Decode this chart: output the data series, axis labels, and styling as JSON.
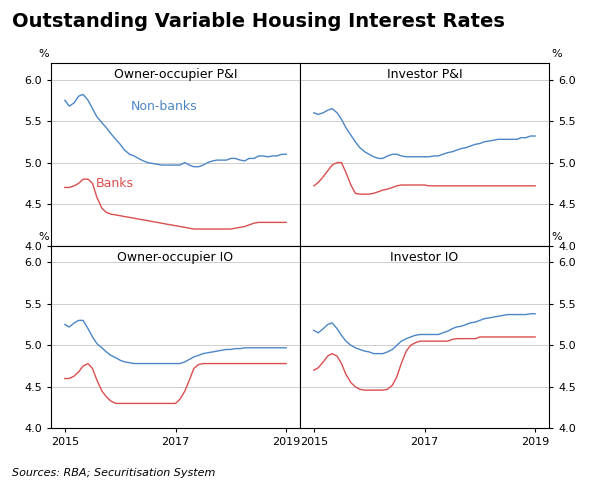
{
  "title": "Outstanding Variable Housing Interest Rates",
  "source_text": "Sources: RBA; Securitisation System",
  "subplots": [
    {
      "title": "Owner-occupier P&I",
      "row": 0,
      "col": 0,
      "nonbanks_x": [
        2015.0,
        2015.08,
        2015.17,
        2015.25,
        2015.33,
        2015.42,
        2015.5,
        2015.58,
        2015.67,
        2015.75,
        2015.83,
        2015.92,
        2016.0,
        2016.08,
        2016.17,
        2016.25,
        2016.33,
        2016.42,
        2016.5,
        2016.58,
        2016.67,
        2016.75,
        2016.83,
        2016.92,
        2017.0,
        2017.08,
        2017.17,
        2017.25,
        2017.33,
        2017.42,
        2017.5,
        2017.58,
        2017.67,
        2017.75,
        2017.83,
        2017.92,
        2018.0,
        2018.08,
        2018.17,
        2018.25,
        2018.33,
        2018.42,
        2018.5,
        2018.58,
        2018.67,
        2018.75,
        2018.83,
        2018.92,
        2019.0
      ],
      "nonbanks_y": [
        5.75,
        5.68,
        5.72,
        5.8,
        5.82,
        5.75,
        5.65,
        5.55,
        5.48,
        5.42,
        5.35,
        5.28,
        5.22,
        5.15,
        5.1,
        5.08,
        5.05,
        5.02,
        5.0,
        4.99,
        4.98,
        4.97,
        4.97,
        4.97,
        4.97,
        4.97,
        5.0,
        4.97,
        4.95,
        4.95,
        4.97,
        5.0,
        5.02,
        5.03,
        5.03,
        5.03,
        5.05,
        5.05,
        5.03,
        5.02,
        5.05,
        5.05,
        5.08,
        5.08,
        5.07,
        5.08,
        5.08,
        5.1,
        5.1
      ],
      "banks_x": [
        2015.0,
        2015.08,
        2015.17,
        2015.25,
        2015.33,
        2015.42,
        2015.5,
        2015.58,
        2015.67,
        2015.75,
        2015.83,
        2015.92,
        2016.0,
        2016.08,
        2016.17,
        2016.25,
        2016.33,
        2016.42,
        2016.5,
        2016.58,
        2016.67,
        2016.75,
        2016.83,
        2016.92,
        2017.0,
        2017.08,
        2017.17,
        2017.25,
        2017.33,
        2017.42,
        2017.5,
        2017.58,
        2017.67,
        2017.75,
        2017.83,
        2017.92,
        2018.0,
        2018.08,
        2018.17,
        2018.25,
        2018.33,
        2018.42,
        2018.5,
        2018.58,
        2018.67,
        2018.75,
        2018.83,
        2018.92,
        2019.0
      ],
      "banks_y": [
        4.7,
        4.7,
        4.72,
        4.75,
        4.8,
        4.8,
        4.75,
        4.58,
        4.45,
        4.4,
        4.38,
        4.37,
        4.36,
        4.35,
        4.34,
        4.33,
        4.32,
        4.31,
        4.3,
        4.29,
        4.28,
        4.27,
        4.26,
        4.25,
        4.24,
        4.23,
        4.22,
        4.21,
        4.2,
        4.2,
        4.2,
        4.2,
        4.2,
        4.2,
        4.2,
        4.2,
        4.2,
        4.21,
        4.22,
        4.23,
        4.25,
        4.27,
        4.28,
        4.28,
        4.28,
        4.28,
        4.28,
        4.28,
        4.28
      ],
      "has_labels": true
    },
    {
      "title": "Investor P&I",
      "row": 0,
      "col": 1,
      "nonbanks_x": [
        2015.0,
        2015.08,
        2015.17,
        2015.25,
        2015.33,
        2015.42,
        2015.5,
        2015.58,
        2015.67,
        2015.75,
        2015.83,
        2015.92,
        2016.0,
        2016.08,
        2016.17,
        2016.25,
        2016.33,
        2016.42,
        2016.5,
        2016.58,
        2016.67,
        2016.75,
        2016.83,
        2016.92,
        2017.0,
        2017.08,
        2017.17,
        2017.25,
        2017.33,
        2017.42,
        2017.5,
        2017.58,
        2017.67,
        2017.75,
        2017.83,
        2017.92,
        2018.0,
        2018.08,
        2018.17,
        2018.25,
        2018.33,
        2018.42,
        2018.5,
        2018.58,
        2018.67,
        2018.75,
        2018.83,
        2018.92,
        2019.0
      ],
      "nonbanks_y": [
        5.6,
        5.58,
        5.6,
        5.63,
        5.65,
        5.6,
        5.52,
        5.42,
        5.33,
        5.25,
        5.18,
        5.13,
        5.1,
        5.07,
        5.05,
        5.05,
        5.08,
        5.1,
        5.1,
        5.08,
        5.07,
        5.07,
        5.07,
        5.07,
        5.07,
        5.07,
        5.08,
        5.08,
        5.1,
        5.12,
        5.13,
        5.15,
        5.17,
        5.18,
        5.2,
        5.22,
        5.23,
        5.25,
        5.26,
        5.27,
        5.28,
        5.28,
        5.28,
        5.28,
        5.28,
        5.3,
        5.3,
        5.32,
        5.32
      ],
      "banks_x": [
        2015.0,
        2015.08,
        2015.17,
        2015.25,
        2015.33,
        2015.42,
        2015.5,
        2015.58,
        2015.67,
        2015.75,
        2015.83,
        2015.92,
        2016.0,
        2016.08,
        2016.17,
        2016.25,
        2016.33,
        2016.42,
        2016.5,
        2016.58,
        2016.67,
        2016.75,
        2016.83,
        2016.92,
        2017.0,
        2017.08,
        2017.17,
        2017.25,
        2017.33,
        2017.42,
        2017.5,
        2017.58,
        2017.67,
        2017.75,
        2017.83,
        2017.92,
        2018.0,
        2018.08,
        2018.17,
        2018.25,
        2018.33,
        2018.42,
        2018.5,
        2018.58,
        2018.67,
        2018.75,
        2018.83,
        2018.92,
        2019.0
      ],
      "banks_y": [
        4.72,
        4.76,
        4.83,
        4.9,
        4.97,
        5.0,
        5.0,
        4.88,
        4.73,
        4.63,
        4.62,
        4.62,
        4.62,
        4.63,
        4.65,
        4.67,
        4.68,
        4.7,
        4.72,
        4.73,
        4.73,
        4.73,
        4.73,
        4.73,
        4.73,
        4.72,
        4.72,
        4.72,
        4.72,
        4.72,
        4.72,
        4.72,
        4.72,
        4.72,
        4.72,
        4.72,
        4.72,
        4.72,
        4.72,
        4.72,
        4.72,
        4.72,
        4.72,
        4.72,
        4.72,
        4.72,
        4.72,
        4.72,
        4.72
      ],
      "has_labels": false
    },
    {
      "title": "Owner-occupier IO",
      "row": 1,
      "col": 0,
      "nonbanks_x": [
        2015.0,
        2015.08,
        2015.17,
        2015.25,
        2015.33,
        2015.42,
        2015.5,
        2015.58,
        2015.67,
        2015.75,
        2015.83,
        2015.92,
        2016.0,
        2016.08,
        2016.17,
        2016.25,
        2016.33,
        2016.42,
        2016.5,
        2016.58,
        2016.67,
        2016.75,
        2016.83,
        2016.92,
        2017.0,
        2017.08,
        2017.17,
        2017.25,
        2017.33,
        2017.42,
        2017.5,
        2017.58,
        2017.67,
        2017.75,
        2017.83,
        2017.92,
        2018.0,
        2018.08,
        2018.17,
        2018.25,
        2018.33,
        2018.42,
        2018.5,
        2018.58,
        2018.67,
        2018.75,
        2018.83,
        2018.92,
        2019.0
      ],
      "nonbanks_y": [
        5.25,
        5.22,
        5.27,
        5.3,
        5.3,
        5.2,
        5.1,
        5.02,
        4.97,
        4.92,
        4.88,
        4.85,
        4.82,
        4.8,
        4.79,
        4.78,
        4.78,
        4.78,
        4.78,
        4.78,
        4.78,
        4.78,
        4.78,
        4.78,
        4.78,
        4.78,
        4.8,
        4.83,
        4.86,
        4.88,
        4.9,
        4.91,
        4.92,
        4.93,
        4.94,
        4.95,
        4.95,
        4.96,
        4.96,
        4.97,
        4.97,
        4.97,
        4.97,
        4.97,
        4.97,
        4.97,
        4.97,
        4.97,
        4.97
      ],
      "banks_x": [
        2015.0,
        2015.08,
        2015.17,
        2015.25,
        2015.33,
        2015.42,
        2015.5,
        2015.58,
        2015.67,
        2015.75,
        2015.83,
        2015.92,
        2016.0,
        2016.08,
        2016.17,
        2016.25,
        2016.33,
        2016.42,
        2016.5,
        2016.58,
        2016.67,
        2016.75,
        2016.83,
        2016.92,
        2017.0,
        2017.08,
        2017.17,
        2017.25,
        2017.33,
        2017.42,
        2017.5,
        2017.58,
        2017.67,
        2017.75,
        2017.83,
        2017.92,
        2018.0,
        2018.08,
        2018.17,
        2018.25,
        2018.33,
        2018.42,
        2018.5,
        2018.58,
        2018.67,
        2018.75,
        2018.83,
        2018.92,
        2019.0
      ],
      "banks_y": [
        4.6,
        4.6,
        4.63,
        4.68,
        4.75,
        4.78,
        4.72,
        4.58,
        4.45,
        4.38,
        4.33,
        4.3,
        4.3,
        4.3,
        4.3,
        4.3,
        4.3,
        4.3,
        4.3,
        4.3,
        4.3,
        4.3,
        4.3,
        4.3,
        4.3,
        4.35,
        4.45,
        4.58,
        4.72,
        4.77,
        4.78,
        4.78,
        4.78,
        4.78,
        4.78,
        4.78,
        4.78,
        4.78,
        4.78,
        4.78,
        4.78,
        4.78,
        4.78,
        4.78,
        4.78,
        4.78,
        4.78,
        4.78,
        4.78
      ],
      "has_labels": false
    },
    {
      "title": "Investor IO",
      "row": 1,
      "col": 1,
      "nonbanks_x": [
        2015.0,
        2015.08,
        2015.17,
        2015.25,
        2015.33,
        2015.42,
        2015.5,
        2015.58,
        2015.67,
        2015.75,
        2015.83,
        2015.92,
        2016.0,
        2016.08,
        2016.17,
        2016.25,
        2016.33,
        2016.42,
        2016.5,
        2016.58,
        2016.67,
        2016.75,
        2016.83,
        2016.92,
        2017.0,
        2017.08,
        2017.17,
        2017.25,
        2017.33,
        2017.42,
        2017.5,
        2017.58,
        2017.67,
        2017.75,
        2017.83,
        2017.92,
        2018.0,
        2018.08,
        2018.17,
        2018.25,
        2018.33,
        2018.42,
        2018.5,
        2018.58,
        2018.67,
        2018.75,
        2018.83,
        2018.92,
        2019.0
      ],
      "nonbanks_y": [
        5.18,
        5.15,
        5.2,
        5.25,
        5.27,
        5.2,
        5.12,
        5.05,
        5.0,
        4.97,
        4.95,
        4.93,
        4.92,
        4.9,
        4.9,
        4.9,
        4.92,
        4.95,
        5.0,
        5.05,
        5.08,
        5.1,
        5.12,
        5.13,
        5.13,
        5.13,
        5.13,
        5.13,
        5.15,
        5.17,
        5.2,
        5.22,
        5.23,
        5.25,
        5.27,
        5.28,
        5.3,
        5.32,
        5.33,
        5.34,
        5.35,
        5.36,
        5.37,
        5.37,
        5.37,
        5.37,
        5.37,
        5.38,
        5.38
      ],
      "banks_x": [
        2015.0,
        2015.08,
        2015.17,
        2015.25,
        2015.33,
        2015.42,
        2015.5,
        2015.58,
        2015.67,
        2015.75,
        2015.83,
        2015.92,
        2016.0,
        2016.08,
        2016.17,
        2016.25,
        2016.33,
        2016.42,
        2016.5,
        2016.58,
        2016.67,
        2016.75,
        2016.83,
        2016.92,
        2017.0,
        2017.08,
        2017.17,
        2017.25,
        2017.33,
        2017.42,
        2017.5,
        2017.58,
        2017.67,
        2017.75,
        2017.83,
        2017.92,
        2018.0,
        2018.08,
        2018.17,
        2018.25,
        2018.33,
        2018.42,
        2018.5,
        2018.58,
        2018.67,
        2018.75,
        2018.83,
        2018.92,
        2019.0
      ],
      "banks_y": [
        4.7,
        4.73,
        4.8,
        4.87,
        4.9,
        4.87,
        4.78,
        4.65,
        4.55,
        4.5,
        4.47,
        4.46,
        4.46,
        4.46,
        4.46,
        4.46,
        4.47,
        4.52,
        4.62,
        4.78,
        4.93,
        5.0,
        5.03,
        5.05,
        5.05,
        5.05,
        5.05,
        5.05,
        5.05,
        5.05,
        5.07,
        5.08,
        5.08,
        5.08,
        5.08,
        5.08,
        5.1,
        5.1,
        5.1,
        5.1,
        5.1,
        5.1,
        5.1,
        5.1,
        5.1,
        5.1,
        5.1,
        5.1,
        5.1
      ],
      "has_labels": false
    }
  ],
  "blue_color": "#4C86C6",
  "red_color": "#D94F4F",
  "ylim": [
    4.0,
    6.2
  ],
  "yticks": [
    4.0,
    4.5,
    5.0,
    5.5,
    6.0
  ],
  "xlim": [
    2014.75,
    2019.25
  ],
  "xticks": [
    2015,
    2017,
    2019
  ],
  "grid_color": "#BBBBBB",
  "bg_color": "#FFFFFF",
  "title_fontsize": 14,
  "subplot_title_fontsize": 9,
  "tick_fontsize": 8,
  "source_fontsize": 8
}
